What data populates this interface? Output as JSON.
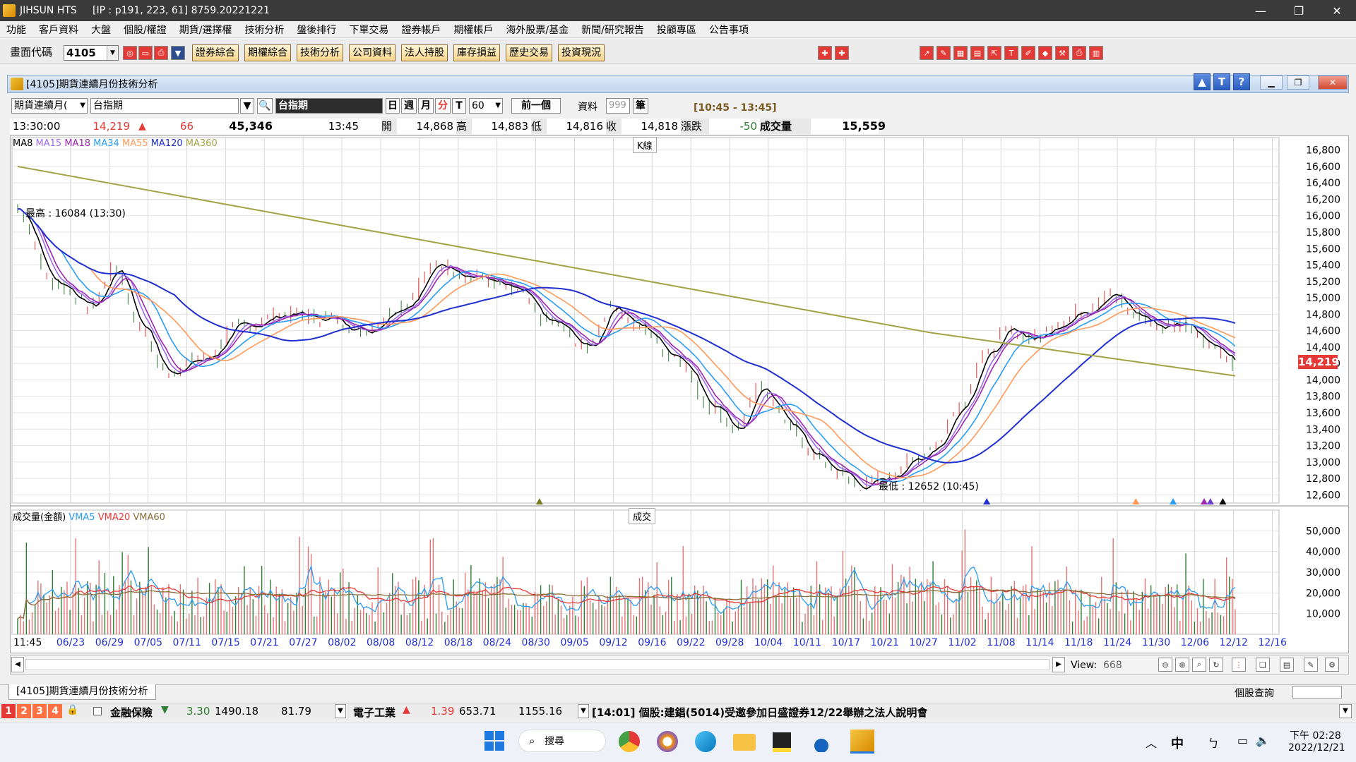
{
  "window": {
    "title": "JIHSUN HTS     [IP : p191, 223, 61] 8759.20221221",
    "controls": [
      "—",
      "❐",
      "✕"
    ]
  },
  "menu": [
    "功能",
    "客戶資料",
    "大盤",
    "個股/權證",
    "期貨/選擇權",
    "技術分析",
    "盤後排行",
    "下單交易",
    "證券帳戶",
    "期權帳戶",
    "海外股票/基金",
    "新聞/研究報告",
    "投顧專區",
    "公告事項"
  ],
  "toolbar": {
    "code_label": "畫面代碼",
    "code_value": "4105",
    "quick_buttons": [
      "證券綜合",
      "期權綜合",
      "技術分析",
      "公司資料",
      "法人持股",
      "庫存損益",
      "歷史交易",
      "投資現況"
    ]
  },
  "panel": {
    "title": "[4105]期貨連續月份技術分析",
    "help_buttons": [
      "▲",
      "T",
      "?"
    ]
  },
  "controls": {
    "contract_select": "期貨連續月(",
    "symbol_input": "台指期",
    "symbol_name": "台指期",
    "period_buttons": [
      "日",
      "週",
      "月",
      "分",
      "T"
    ],
    "active_period": "分",
    "interval": "60",
    "prev_button": "前一個",
    "data_label": "資料",
    "data_count": "999",
    "unit_label": "筆",
    "time_range": "[10:45 - 13:45]"
  },
  "quote": {
    "time": "13:30:00",
    "price": "14,219",
    "change": "66",
    "volume": "45,346",
    "bar_time": "13:45",
    "open_label": "開",
    "open": "14,868",
    "high_label": "高",
    "high": "14,883",
    "low_label": "低",
    "low": "14,816",
    "close_label": "收",
    "close": "14,818",
    "chg_label": "漲跌",
    "chg": "-50",
    "vol_label": "成交量",
    "vol": "15,559"
  },
  "price_chart": {
    "ma_legend": [
      {
        "label": "MA8",
        "color": "#000000"
      },
      {
        "label": "MA15",
        "color": "#9b6cf0"
      },
      {
        "label": "MA18",
        "color": "#9c27b0"
      },
      {
        "label": "MA34",
        "color": "#2a9df4"
      },
      {
        "label": "MA55",
        "color": "#ff9a5a"
      },
      {
        "label": "MA120",
        "color": "#1f2fd1"
      },
      {
        "label": "MA360",
        "color": "#a3a345"
      }
    ],
    "center_tag": "K線",
    "high_annotation": "最高 : 16084 (13:30)",
    "low_annotation": "最低 : 12652 (10:45)",
    "current_price_tag": "14,219",
    "y_ticks": [
      "16,800",
      "16,600",
      "16,400",
      "16,200",
      "16,000",
      "15,800",
      "15,600",
      "15,400",
      "15,200",
      "15,000",
      "14,800",
      "14,600",
      "14,400",
      "14,200",
      "14,000",
      "13,800",
      "13,600",
      "13,400",
      "13,200",
      "13,000",
      "12,800",
      "12,600"
    ]
  },
  "volume_chart": {
    "legend": [
      {
        "label": "成交量(金額)",
        "color": "#000000"
      },
      {
        "label": "VMA5",
        "color": "#2a9df4"
      },
      {
        "label": "VMA20",
        "color": "#e53935"
      },
      {
        "label": "VMA60",
        "color": "#8d6e3a"
      }
    ],
    "center_tag": "成交",
    "y_ticks": [
      "50,000",
      "40,000",
      "30,000",
      "20,000",
      "10,000"
    ]
  },
  "x_axis": [
    "11:45",
    "06/23",
    "06/29",
    "07/05",
    "07/11",
    "07/15",
    "07/21",
    "07/27",
    "08/02",
    "08/08",
    "08/12",
    "08/18",
    "08/24",
    "08/30",
    "09/05",
    "09/12",
    "09/16",
    "09/22",
    "09/28",
    "10/04",
    "10/11",
    "10/17",
    "10/21",
    "10/27",
    "11/02",
    "11/08",
    "11/14",
    "11/18",
    "11/24",
    "11/30",
    "12/06",
    "12/12",
    "12/16"
  ],
  "scrollbar": {
    "view_label": "View:",
    "view_value": "668"
  },
  "tab": {
    "label": "[4105]期貨連續月份技術分析",
    "right_label": "個股查詢"
  },
  "ticker": {
    "pages": [
      "1",
      "2",
      "3",
      "4"
    ],
    "items": [
      {
        "name": "金融保險",
        "dir": "▼",
        "change": "3.30",
        "index": "1490.18",
        "amount": "81.79"
      },
      {
        "name": "電子工業",
        "dir": "▲",
        "change": "1.39",
        "index": "653.71",
        "amount": "1155.16"
      }
    ],
    "news": "[14:01] 個股:建錩(5014)受邀參加日盛證券12/22舉辦之法人說明會"
  },
  "taskbar": {
    "search_label": "搜尋",
    "tray_ime": "中",
    "clock_time": "下午 02:28",
    "clock_date": "2022/12/21"
  }
}
